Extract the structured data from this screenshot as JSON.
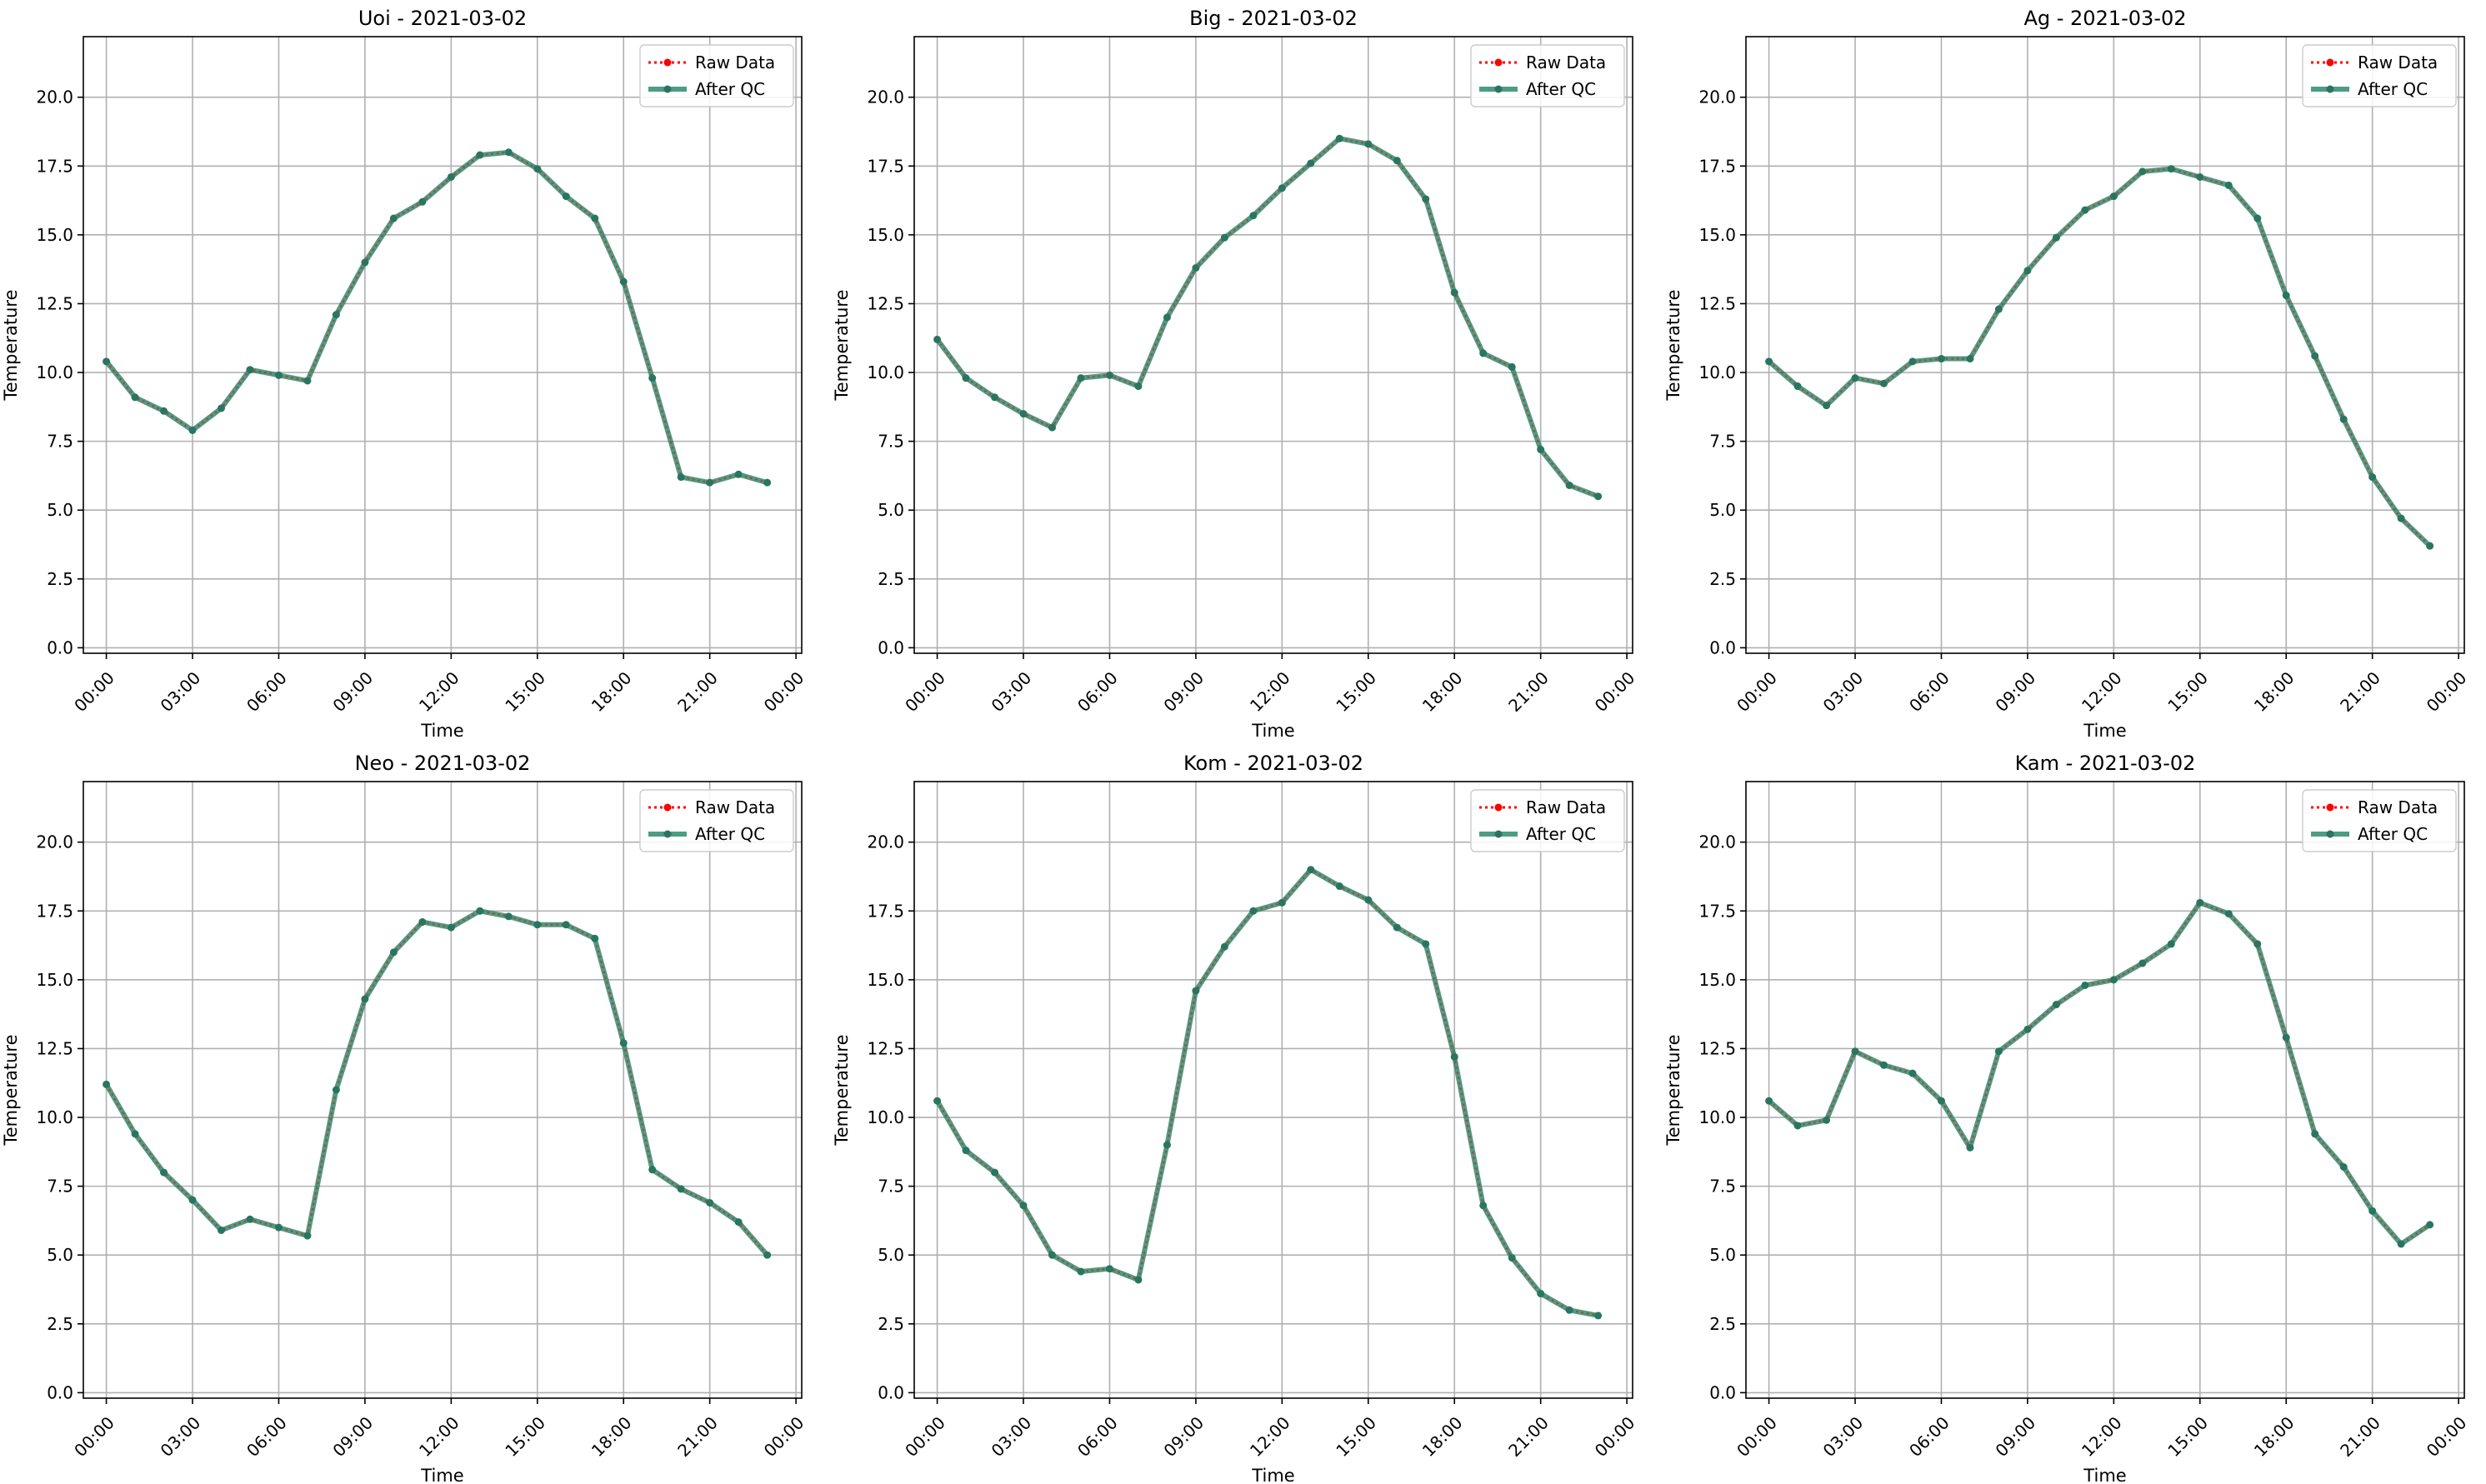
{
  "colors": {
    "raw": "#ff0000",
    "qc": "#2e8b6f",
    "qc_marker": "#2a7560",
    "grid": "#b0b0b0",
    "axis": "#000000"
  },
  "legend": {
    "raw": "Raw Data",
    "qc": "After QC"
  },
  "chart_data": [
    {
      "type": "line",
      "title": "Uoi - 2021-03-02",
      "xlabel": "Time",
      "ylabel": "Temperature",
      "xlim": [
        -0.8,
        24.2
      ],
      "ylim": [
        -0.2,
        22.2
      ],
      "xticks": [
        0,
        3,
        6,
        9,
        12,
        15,
        18,
        21,
        24
      ],
      "xtick_labels": [
        "00:00",
        "03:00",
        "06:00",
        "09:00",
        "12:00",
        "15:00",
        "18:00",
        "21:00",
        "00:00"
      ],
      "yticks": [
        0,
        2.5,
        5,
        7.5,
        10,
        12.5,
        15,
        17.5,
        20
      ],
      "ytick_labels": [
        "0.0",
        "2.5",
        "5.0",
        "7.5",
        "10.0",
        "12.5",
        "15.0",
        "17.5",
        "20.0"
      ],
      "grid": true,
      "legend_position": "top-right",
      "x": [
        0,
        1,
        2,
        3,
        4,
        5,
        6,
        7,
        8,
        9,
        10,
        11,
        12,
        13,
        14,
        15,
        16,
        17,
        18,
        19,
        20,
        21,
        22,
        23
      ],
      "series": [
        {
          "name": "Raw Data",
          "values": [
            10.4,
            9.1,
            8.6,
            7.9,
            8.7,
            10.1,
            9.9,
            9.7,
            12.1,
            14.0,
            15.6,
            16.2,
            17.1,
            17.9,
            18.0,
            17.4,
            16.4,
            15.6,
            13.3,
            9.8,
            6.2,
            6.0,
            6.3,
            6.0
          ]
        },
        {
          "name": "After QC",
          "values": [
            10.4,
            9.1,
            8.6,
            7.9,
            8.7,
            10.1,
            9.9,
            9.7,
            12.1,
            14.0,
            15.6,
            16.2,
            17.1,
            17.9,
            18.0,
            17.4,
            16.4,
            15.6,
            13.3,
            9.8,
            6.2,
            6.0,
            6.3,
            6.0
          ]
        }
      ]
    },
    {
      "type": "line",
      "title": "Big - 2021-03-02",
      "xlabel": "Time",
      "ylabel": "Temperature",
      "xlim": [
        -0.8,
        24.2
      ],
      "ylim": [
        -0.2,
        22.2
      ],
      "xticks": [
        0,
        3,
        6,
        9,
        12,
        15,
        18,
        21,
        24
      ],
      "xtick_labels": [
        "00:00",
        "03:00",
        "06:00",
        "09:00",
        "12:00",
        "15:00",
        "18:00",
        "21:00",
        "00:00"
      ],
      "yticks": [
        0,
        2.5,
        5,
        7.5,
        10,
        12.5,
        15,
        17.5,
        20
      ],
      "ytick_labels": [
        "0.0",
        "2.5",
        "5.0",
        "7.5",
        "10.0",
        "12.5",
        "15.0",
        "17.5",
        "20.0"
      ],
      "grid": true,
      "legend_position": "top-right",
      "x": [
        0,
        1,
        2,
        3,
        4,
        5,
        6,
        7,
        8,
        9,
        10,
        11,
        12,
        13,
        14,
        15,
        16,
        17,
        18,
        19,
        20,
        21,
        22,
        23
      ],
      "series": [
        {
          "name": "Raw Data",
          "values": [
            11.2,
            9.8,
            9.1,
            8.5,
            8.0,
            9.8,
            9.9,
            9.5,
            12.0,
            13.8,
            14.9,
            15.7,
            16.7,
            17.6,
            18.5,
            18.3,
            17.7,
            16.3,
            12.9,
            10.7,
            10.2,
            7.2,
            5.9,
            5.5
          ]
        },
        {
          "name": "After QC",
          "values": [
            11.2,
            9.8,
            9.1,
            8.5,
            8.0,
            9.8,
            9.9,
            9.5,
            12.0,
            13.8,
            14.9,
            15.7,
            16.7,
            17.6,
            18.5,
            18.3,
            17.7,
            16.3,
            12.9,
            10.7,
            10.2,
            7.2,
            5.9,
            5.5
          ]
        }
      ]
    },
    {
      "type": "line",
      "title": "Ag - 2021-03-02",
      "xlabel": "Time",
      "ylabel": "Temperature",
      "xlim": [
        -0.8,
        24.2
      ],
      "ylim": [
        -0.2,
        22.2
      ],
      "xticks": [
        0,
        3,
        6,
        9,
        12,
        15,
        18,
        21,
        24
      ],
      "xtick_labels": [
        "00:00",
        "03:00",
        "06:00",
        "09:00",
        "12:00",
        "15:00",
        "18:00",
        "21:00",
        "00:00"
      ],
      "yticks": [
        0,
        2.5,
        5,
        7.5,
        10,
        12.5,
        15,
        17.5,
        20
      ],
      "ytick_labels": [
        "0.0",
        "2.5",
        "5.0",
        "7.5",
        "10.0",
        "12.5",
        "15.0",
        "17.5",
        "20.0"
      ],
      "grid": true,
      "legend_position": "top-right",
      "x": [
        0,
        1,
        2,
        3,
        4,
        5,
        6,
        7,
        8,
        9,
        10,
        11,
        12,
        13,
        14,
        15,
        16,
        17,
        18,
        19,
        20,
        21,
        22,
        23
      ],
      "series": [
        {
          "name": "Raw Data",
          "values": [
            10.4,
            9.5,
            8.8,
            9.8,
            9.6,
            10.4,
            10.5,
            10.5,
            12.3,
            13.7,
            14.9,
            15.9,
            16.4,
            17.3,
            17.4,
            17.1,
            16.8,
            15.6,
            12.8,
            10.6,
            8.3,
            6.2,
            4.7,
            3.7
          ]
        },
        {
          "name": "After QC",
          "values": [
            10.4,
            9.5,
            8.8,
            9.8,
            9.6,
            10.4,
            10.5,
            10.5,
            12.3,
            13.7,
            14.9,
            15.9,
            16.4,
            17.3,
            17.4,
            17.1,
            16.8,
            15.6,
            12.8,
            10.6,
            8.3,
            6.2,
            4.7,
            3.7
          ]
        }
      ]
    },
    {
      "type": "line",
      "title": "Neo - 2021-03-02",
      "xlabel": "Time",
      "ylabel": "Temperature",
      "xlim": [
        -0.8,
        24.2
      ],
      "ylim": [
        -0.2,
        22.2
      ],
      "xticks": [
        0,
        3,
        6,
        9,
        12,
        15,
        18,
        21,
        24
      ],
      "xtick_labels": [
        "00:00",
        "03:00",
        "06:00",
        "09:00",
        "12:00",
        "15:00",
        "18:00",
        "21:00",
        "00:00"
      ],
      "yticks": [
        0,
        2.5,
        5,
        7.5,
        10,
        12.5,
        15,
        17.5,
        20
      ],
      "ytick_labels": [
        "0.0",
        "2.5",
        "5.0",
        "7.5",
        "10.0",
        "12.5",
        "15.0",
        "17.5",
        "20.0"
      ],
      "grid": true,
      "legend_position": "top-right",
      "x": [
        0,
        1,
        2,
        3,
        4,
        5,
        6,
        7,
        8,
        9,
        10,
        11,
        12,
        13,
        14,
        15,
        16,
        17,
        18,
        19,
        20,
        21,
        22,
        23
      ],
      "series": [
        {
          "name": "Raw Data",
          "values": [
            11.2,
            9.4,
            8.0,
            7.0,
            5.9,
            6.3,
            6.0,
            5.7,
            11.0,
            14.3,
            16.0,
            17.1,
            16.9,
            17.5,
            17.3,
            17.0,
            17.0,
            16.5,
            12.7,
            8.1,
            7.4,
            6.9,
            6.2,
            5.0
          ]
        },
        {
          "name": "After QC",
          "values": [
            11.2,
            9.4,
            8.0,
            7.0,
            5.9,
            6.3,
            6.0,
            5.7,
            11.0,
            14.3,
            16.0,
            17.1,
            16.9,
            17.5,
            17.3,
            17.0,
            17.0,
            16.5,
            12.7,
            8.1,
            7.4,
            6.9,
            6.2,
            5.0
          ]
        }
      ]
    },
    {
      "type": "line",
      "title": "Kom - 2021-03-02",
      "xlabel": "Time",
      "ylabel": "Temperature",
      "xlim": [
        -0.8,
        24.2
      ],
      "ylim": [
        -0.2,
        22.2
      ],
      "xticks": [
        0,
        3,
        6,
        9,
        12,
        15,
        18,
        21,
        24
      ],
      "xtick_labels": [
        "00:00",
        "03:00",
        "06:00",
        "09:00",
        "12:00",
        "15:00",
        "18:00",
        "21:00",
        "00:00"
      ],
      "yticks": [
        0,
        2.5,
        5,
        7.5,
        10,
        12.5,
        15,
        17.5,
        20
      ],
      "ytick_labels": [
        "0.0",
        "2.5",
        "5.0",
        "7.5",
        "10.0",
        "12.5",
        "15.0",
        "17.5",
        "20.0"
      ],
      "grid": true,
      "legend_position": "top-right",
      "x": [
        0,
        1,
        2,
        3,
        4,
        5,
        6,
        7,
        8,
        9,
        10,
        11,
        12,
        13,
        14,
        15,
        16,
        17,
        18,
        19,
        20,
        21,
        22,
        23
      ],
      "series": [
        {
          "name": "Raw Data",
          "values": [
            10.6,
            8.8,
            8.0,
            6.8,
            5.0,
            4.4,
            4.5,
            4.1,
            9.0,
            14.6,
            16.2,
            17.5,
            17.8,
            19.0,
            18.4,
            17.9,
            16.9,
            16.3,
            12.2,
            6.8,
            4.9,
            3.6,
            3.0,
            2.8
          ]
        },
        {
          "name": "After QC",
          "values": [
            10.6,
            8.8,
            8.0,
            6.8,
            5.0,
            4.4,
            4.5,
            4.1,
            9.0,
            14.6,
            16.2,
            17.5,
            17.8,
            19.0,
            18.4,
            17.9,
            16.9,
            16.3,
            12.2,
            6.8,
            4.9,
            3.6,
            3.0,
            2.8
          ]
        }
      ]
    },
    {
      "type": "line",
      "title": "Kam - 2021-03-02",
      "xlabel": "Time",
      "ylabel": "Temperature",
      "xlim": [
        -0.8,
        24.2
      ],
      "ylim": [
        -0.2,
        22.2
      ],
      "xticks": [
        0,
        3,
        6,
        9,
        12,
        15,
        18,
        21,
        24
      ],
      "xtick_labels": [
        "00:00",
        "03:00",
        "06:00",
        "09:00",
        "12:00",
        "15:00",
        "18:00",
        "21:00",
        "00:00"
      ],
      "yticks": [
        0,
        2.5,
        5,
        7.5,
        10,
        12.5,
        15,
        17.5,
        20
      ],
      "ytick_labels": [
        "0.0",
        "2.5",
        "5.0",
        "7.5",
        "10.0",
        "12.5",
        "15.0",
        "17.5",
        "20.0"
      ],
      "grid": true,
      "legend_position": "top-right",
      "x": [
        0,
        1,
        2,
        3,
        4,
        5,
        6,
        7,
        8,
        9,
        10,
        11,
        12,
        13,
        14,
        15,
        16,
        17,
        18,
        19,
        20,
        21,
        22,
        23
      ],
      "series": [
        {
          "name": "Raw Data",
          "values": [
            10.6,
            9.7,
            9.9,
            12.4,
            11.9,
            11.6,
            10.6,
            8.9,
            12.4,
            13.2,
            14.1,
            14.8,
            15.0,
            15.6,
            16.3,
            17.8,
            17.4,
            16.3,
            12.9,
            9.4,
            8.2,
            6.6,
            5.4,
            6.1
          ]
        },
        {
          "name": "After QC",
          "values": [
            10.6,
            9.7,
            9.9,
            12.4,
            11.9,
            11.6,
            10.6,
            8.9,
            12.4,
            13.2,
            14.1,
            14.8,
            15.0,
            15.6,
            16.3,
            17.8,
            17.4,
            16.3,
            12.9,
            9.4,
            8.2,
            6.6,
            5.4,
            6.1
          ]
        }
      ]
    }
  ]
}
